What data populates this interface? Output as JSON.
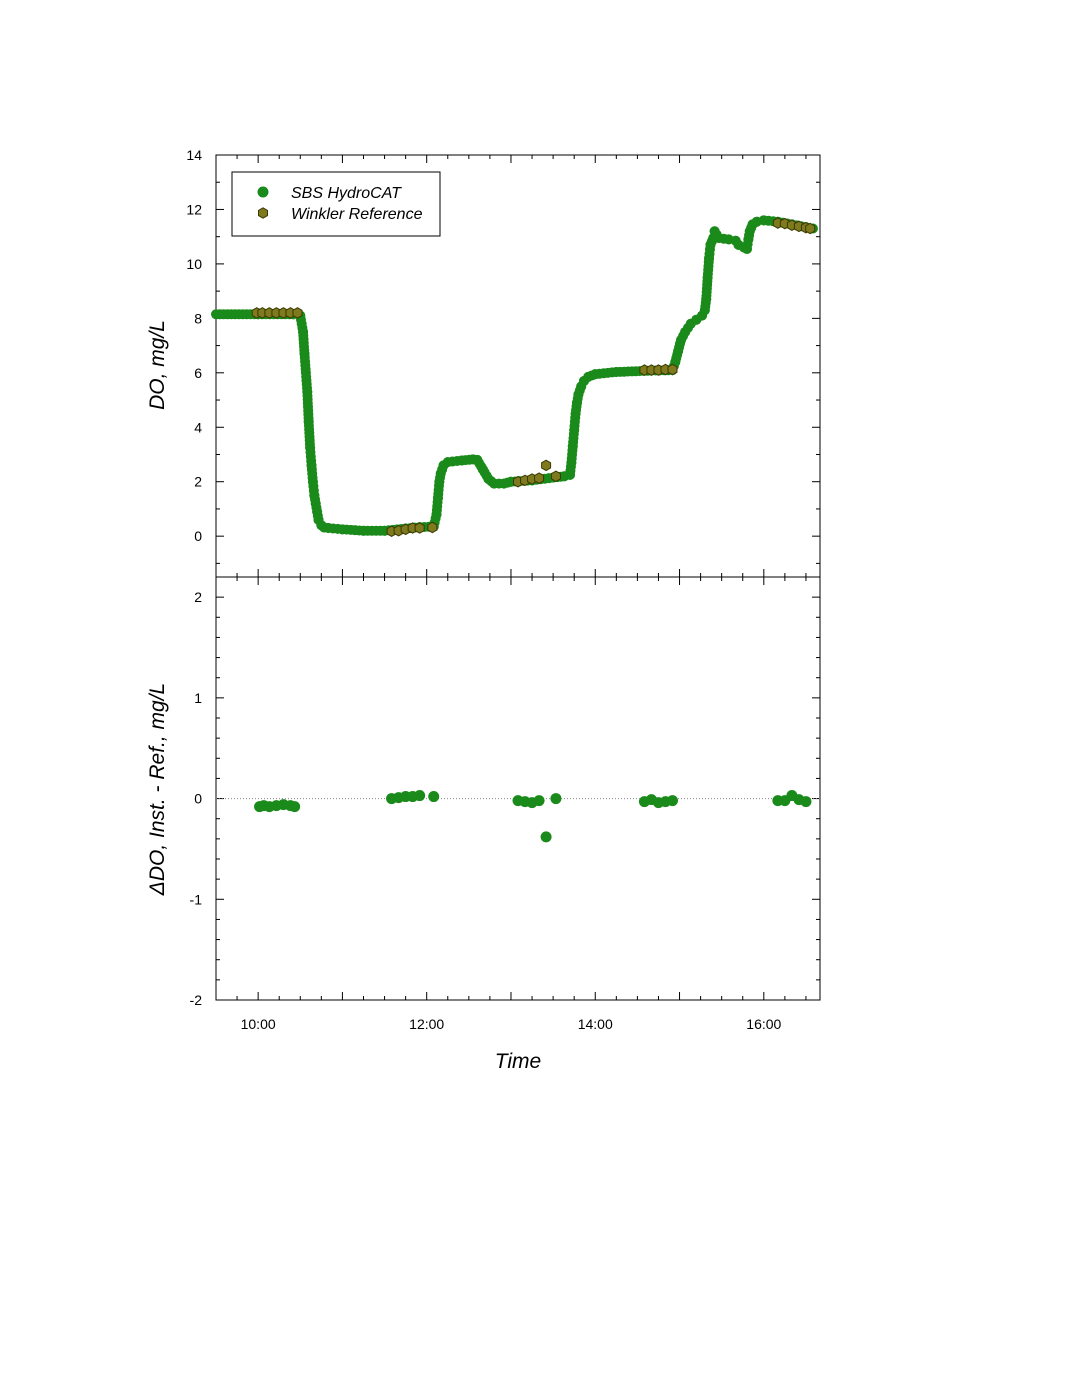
{
  "colors": {
    "instrument": "#1a8a1a",
    "reference_fill": "#7f7a1e",
    "reference_stroke": "#3a3a00",
    "axis": "#000000",
    "zero_line": "#888888"
  },
  "chart_data": [
    {
      "type": "scatter",
      "panel": "top",
      "ylabel": "DO, mg/L",
      "xlabel": "",
      "ylim": [
        -1.5,
        14
      ],
      "xlim": [
        "09:30",
        "16:40"
      ],
      "y_ticks": [
        "0",
        "2",
        "4",
        "6",
        "8",
        "10",
        "12",
        "14"
      ],
      "legend": {
        "placement": "top-left",
        "entries": [
          "SBS HydroCAT",
          "Winkler Reference"
        ]
      },
      "series": [
        {
          "name": "SBS HydroCAT",
          "marker": "circle",
          "segments": [
            [
              [
                "09:30",
                8.15
              ],
              [
                "10:00",
                8.15
              ],
              [
                "10:25",
                8.15
              ],
              [
                "10:30",
                8.1
              ]
            ],
            [
              [
                "10:30",
                8.1
              ],
              [
                "10:32",
                7.5
              ],
              [
                "10:33",
                6.7
              ],
              [
                "10:35",
                5.3
              ],
              [
                "10:36",
                4.2
              ],
              [
                "10:37",
                3.25
              ],
              [
                "10:38",
                2.6
              ],
              [
                "10:39",
                2.0
              ],
              [
                "10:40",
                1.5
              ],
              [
                "10:41",
                1.2
              ],
              [
                "10:42",
                0.9
              ],
              [
                "10:43",
                0.6
              ],
              [
                "10:45",
                0.4
              ],
              [
                "10:47",
                0.32
              ],
              [
                "10:50",
                0.3
              ],
              [
                "11:00",
                0.25
              ],
              [
                "11:15",
                0.2
              ],
              [
                "11:30",
                0.2
              ],
              [
                "11:45",
                0.28
              ],
              [
                "11:55",
                0.33
              ],
              [
                "12:05",
                0.35
              ]
            ],
            [
              [
                "12:05",
                0.35
              ],
              [
                "12:07",
                0.8
              ],
              [
                "12:08",
                1.4
              ],
              [
                "12:09",
                2.0
              ],
              [
                "12:10",
                2.3
              ],
              [
                "12:12",
                2.6
              ],
              [
                "12:15",
                2.72
              ],
              [
                "12:25",
                2.78
              ],
              [
                "12:33",
                2.82
              ],
              [
                "12:36",
                2.8
              ]
            ],
            [
              [
                "12:36",
                2.8
              ],
              [
                "12:40",
                2.45
              ],
              [
                "12:44",
                2.1
              ],
              [
                "12:48",
                1.93
              ],
              [
                "12:55",
                1.93
              ],
              [
                "13:00",
                2.0
              ],
              [
                "13:15",
                2.05
              ],
              [
                "13:30",
                2.15
              ],
              [
                "13:38",
                2.2
              ],
              [
                "13:42",
                2.25
              ]
            ],
            [
              [
                "13:42",
                2.25
              ],
              [
                "13:43",
                2.7
              ],
              [
                "13:44",
                3.3
              ],
              [
                "13:45",
                3.9
              ],
              [
                "13:46",
                4.5
              ],
              [
                "13:47",
                4.9
              ],
              [
                "13:48",
                5.2
              ],
              [
                "13:50",
                5.5
              ],
              [
                "13:52",
                5.7
              ],
              [
                "13:55",
                5.85
              ],
              [
                "14:00",
                5.95
              ],
              [
                "14:15",
                6.03
              ],
              [
                "14:40",
                6.08
              ],
              [
                "14:55",
                6.1
              ]
            ],
            [
              [
                "14:55",
                6.1
              ],
              [
                "14:57",
                6.4
              ],
              [
                "14:59",
                6.8
              ],
              [
                "15:01",
                7.2
              ],
              [
                "15:04",
                7.5
              ],
              [
                "15:08",
                7.8
              ],
              [
                "15:12",
                7.95
              ],
              [
                "15:16",
                8.1
              ],
              [
                "15:18",
                8.3
              ]
            ],
            [
              [
                "15:18",
                8.3
              ],
              [
                "15:19",
                8.7
              ],
              [
                "15:20",
                9.5
              ],
              [
                "15:21",
                10.2
              ],
              [
                "15:22",
                10.7
              ],
              [
                "15:24",
                10.95
              ],
              [
                "15:25",
                11.2
              ],
              [
                "15:28",
                10.95
              ],
              [
                "15:35",
                10.9
              ],
              [
                "15:40",
                10.85
              ],
              [
                "15:42",
                10.7
              ],
              [
                "15:46",
                10.6
              ],
              [
                "15:48",
                10.55
              ]
            ],
            [
              [
                "15:48",
                10.55
              ],
              [
                "15:49",
                10.9
              ],
              [
                "15:50",
                11.2
              ],
              [
                "15:52",
                11.45
              ],
              [
                "15:55",
                11.55
              ],
              [
                "16:00",
                11.6
              ],
              [
                "16:10",
                11.55
              ],
              [
                "16:20",
                11.45
              ],
              [
                "16:30",
                11.35
              ],
              [
                "16:35",
                11.3
              ]
            ]
          ]
        },
        {
          "name": "Winkler Reference",
          "marker": "hexagon",
          "points": [
            [
              "09:59",
              8.2
            ],
            [
              "10:03",
              8.2
            ],
            [
              "10:08",
              8.2
            ],
            [
              "10:13",
              8.2
            ],
            [
              "10:18",
              8.2
            ],
            [
              "10:23",
              8.2
            ],
            [
              "10:28",
              8.2
            ],
            [
              "11:35",
              0.18
            ],
            [
              "11:40",
              0.2
            ],
            [
              "11:45",
              0.25
            ],
            [
              "11:50",
              0.3
            ],
            [
              "11:55",
              0.3
            ],
            [
              "12:04",
              0.32
            ],
            [
              "13:05",
              2.0
            ],
            [
              "13:10",
              2.05
            ],
            [
              "13:15",
              2.1
            ],
            [
              "13:20",
              2.13
            ],
            [
              "13:25",
              2.6
            ],
            [
              "13:32",
              2.2
            ],
            [
              "14:35",
              6.1
            ],
            [
              "14:40",
              6.1
            ],
            [
              "14:45",
              6.1
            ],
            [
              "14:50",
              6.12
            ],
            [
              "14:55",
              6.12
            ],
            [
              "16:10",
              11.5
            ],
            [
              "16:15",
              11.48
            ],
            [
              "16:20",
              11.42
            ],
            [
              "16:25",
              11.38
            ],
            [
              "16:30",
              11.33
            ],
            [
              "16:33",
              11.3
            ]
          ]
        }
      ]
    },
    {
      "type": "scatter",
      "panel": "bottom",
      "ylabel": "ΔDO, Inst. - Ref., mg/L",
      "xlabel": "Time",
      "ylim": [
        -2,
        2.2
      ],
      "xlim": [
        "09:30",
        "16:40"
      ],
      "y_ticks": [
        "-2",
        "-1",
        "0",
        "1",
        "2"
      ],
      "x_ticks": [
        "10:00",
        "12:00",
        "14:00",
        "16:00"
      ],
      "zero_line": "dotted",
      "series": [
        {
          "name": "",
          "marker": "circle",
          "points": [
            [
              "10:01",
              -0.08
            ],
            [
              "10:04",
              -0.07
            ],
            [
              "10:08",
              -0.08
            ],
            [
              "10:13",
              -0.07
            ],
            [
              "10:18",
              -0.06
            ],
            [
              "10:23",
              -0.07
            ],
            [
              "10:26",
              -0.08
            ],
            [
              "11:35",
              0.0
            ],
            [
              "11:40",
              0.01
            ],
            [
              "11:45",
              0.02
            ],
            [
              "11:50",
              0.02
            ],
            [
              "11:55",
              0.03
            ],
            [
              "12:05",
              0.02
            ],
            [
              "13:05",
              -0.02
            ],
            [
              "13:10",
              -0.03
            ],
            [
              "13:15",
              -0.04
            ],
            [
              "13:20",
              -0.02
            ],
            [
              "13:25",
              -0.38
            ],
            [
              "13:32",
              0.0
            ],
            [
              "14:35",
              -0.03
            ],
            [
              "14:40",
              -0.01
            ],
            [
              "14:45",
              -0.04
            ],
            [
              "14:50",
              -0.03
            ],
            [
              "14:55",
              -0.02
            ],
            [
              "16:10",
              -0.02
            ],
            [
              "16:15",
              -0.02
            ],
            [
              "16:20",
              0.03
            ],
            [
              "16:25",
              -0.01
            ],
            [
              "16:30",
              -0.03
            ]
          ]
        }
      ]
    }
  ]
}
